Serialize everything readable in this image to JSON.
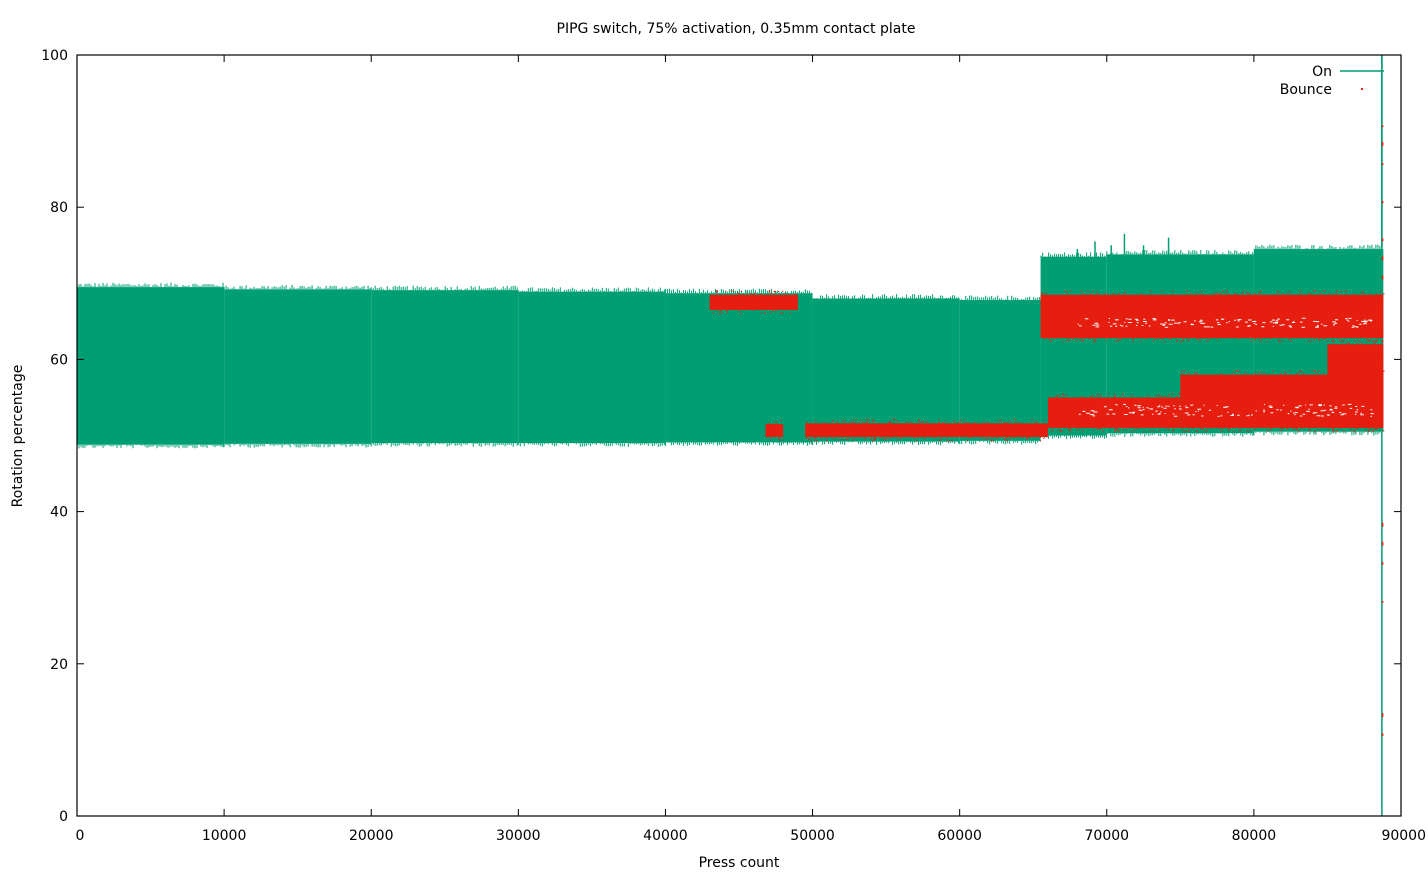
{
  "chart_data": {
    "type": "scatter",
    "title": "PIPG switch, 75% activation, 0.35mm contact plate",
    "xlabel": "Press count",
    "ylabel": "Rotation percentage",
    "xlim": [
      0,
      90000
    ],
    "ylim": [
      0,
      100
    ],
    "xticks": [
      0,
      10000,
      20000,
      30000,
      40000,
      50000,
      60000,
      70000,
      80000,
      90000
    ],
    "xtick_labels": [
      "0",
      "10000",
      "20000",
      "30000",
      "40000",
      "50000",
      "60000",
      "70000",
      "80000",
      "90000"
    ],
    "yticks": [
      0,
      20,
      40,
      60,
      80,
      100
    ],
    "ytick_labels": [
      "0",
      "20",
      "40",
      "60",
      "80",
      "100"
    ],
    "grid": false,
    "legend_position": "top-right",
    "series": [
      {
        "name": "On",
        "style": "line",
        "color": "#009e73",
        "bands": [
          {
            "x": [
              0,
              10000
            ],
            "y_low": 48.8,
            "y_high": 69.5
          },
          {
            "x": [
              10000,
              20000
            ],
            "y_low": 48.9,
            "y_high": 69.2
          },
          {
            "x": [
              20000,
              30000
            ],
            "y_low": 49.0,
            "y_high": 69.1
          },
          {
            "x": [
              30000,
              40000
            ],
            "y_low": 49.0,
            "y_high": 68.9
          },
          {
            "x": [
              40000,
              50000
            ],
            "y_low": 49.1,
            "y_high": 68.7
          },
          {
            "x": [
              50000,
              60000
            ],
            "y_low": 49.2,
            "y_high": 68.0
          },
          {
            "x": [
              60000,
              65500
            ],
            "y_low": 49.3,
            "y_high": 67.8
          },
          {
            "x": [
              65500,
              70000
            ],
            "y_low": 50.0,
            "y_high": 73.5
          },
          {
            "x": [
              70000,
              80000
            ],
            "y_low": 50.3,
            "y_high": 73.8
          },
          {
            "x": [
              80000,
              88800
            ],
            "y_low": 50.5,
            "y_high": 74.5
          }
        ],
        "spikes": [
          {
            "x": 65700,
            "y": 73.0
          },
          {
            "x": 68000,
            "y": 74.5
          },
          {
            "x": 69200,
            "y": 75.5
          },
          {
            "x": 70300,
            "y": 75.0
          },
          {
            "x": 71200,
            "y": 76.5
          },
          {
            "x": 72500,
            "y": 75.0
          },
          {
            "x": 74200,
            "y": 76.0
          },
          {
            "x": 88700,
            "y": 100
          }
        ],
        "final_drop": {
          "x": 88700,
          "y_low": 0,
          "y_high": 100
        }
      },
      {
        "name": "Bounce",
        "style": "points",
        "color": "#e51e10",
        "clusters": [
          {
            "x": [
              43000,
              49000
            ],
            "y_low": 66.5,
            "y_high": 68.5
          },
          {
            "x": [
              46800,
              48000
            ],
            "y_low": 49.8,
            "y_high": 51.5
          },
          {
            "x": [
              49500,
              66000
            ],
            "y_low": 49.8,
            "y_high": 51.6
          },
          {
            "x": [
              65500,
              88800
            ],
            "y_low": 62.8,
            "y_high": 68.5
          },
          {
            "x": [
              66000,
              75000
            ],
            "y_low": 51.0,
            "y_high": 55.0
          },
          {
            "x": [
              75000,
              88800
            ],
            "y_low": 51.0,
            "y_high": 58.0
          },
          {
            "x": [
              85000,
              88800
            ],
            "y_low": 51.0,
            "y_high": 62.0
          }
        ],
        "final_drop": {
          "x": 88750,
          "y_low": 8,
          "y_high": 100
        }
      }
    ]
  }
}
